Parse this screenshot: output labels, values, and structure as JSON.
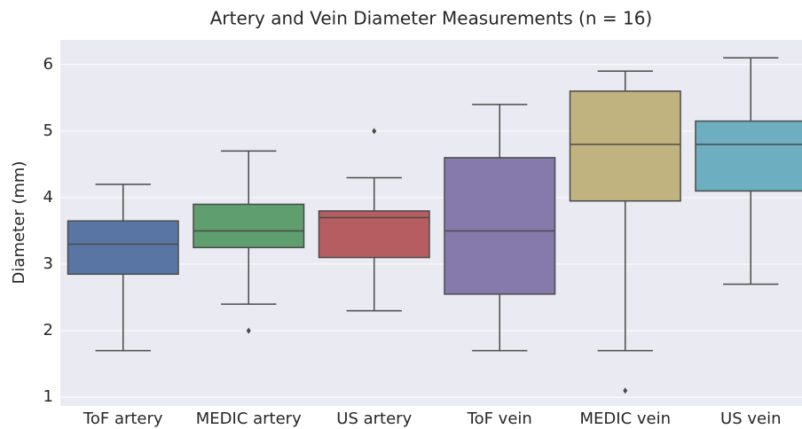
{
  "chart_data": {
    "type": "box",
    "title": "Artery and Vein Diameter Measurements (n = 16)",
    "y_label": "Diameter (mm)",
    "categories": [
      "ToF artery",
      "MEDIC artery",
      "US artery",
      "ToF vein",
      "MEDIC vein",
      "US vein"
    ],
    "colors": [
      "#5875a4",
      "#5f9e6e",
      "#b55d60",
      "#857aab",
      "#c1b37f",
      "#6daec0"
    ],
    "boxes": [
      {
        "whislo": 1.7,
        "q1": 2.85,
        "med": 3.3,
        "q3": 3.65,
        "whishi": 4.2,
        "fliers": []
      },
      {
        "whislo": 2.4,
        "q1": 3.25,
        "med": 3.5,
        "q3": 3.9,
        "whishi": 4.7,
        "fliers": [
          2.0
        ]
      },
      {
        "whislo": 2.3,
        "q1": 3.1,
        "med": 3.7,
        "q3": 3.8,
        "whishi": 4.3,
        "fliers": [
          5.0
        ]
      },
      {
        "whislo": 1.7,
        "q1": 2.55,
        "med": 3.5,
        "q3": 4.6,
        "whishi": 5.4,
        "fliers": []
      },
      {
        "whislo": 1.7,
        "q1": 3.95,
        "med": 4.8,
        "q3": 5.6,
        "whishi": 5.9,
        "fliers": [
          1.1
        ]
      },
      {
        "whislo": 2.7,
        "q1": 4.1,
        "med": 4.8,
        "q3": 5.15,
        "whishi": 6.1,
        "fliers": []
      }
    ],
    "ylim": [
      0.87,
      6.37
    ],
    "yticks": [
      1,
      2,
      3,
      4,
      5,
      6
    ],
    "grid": true
  }
}
